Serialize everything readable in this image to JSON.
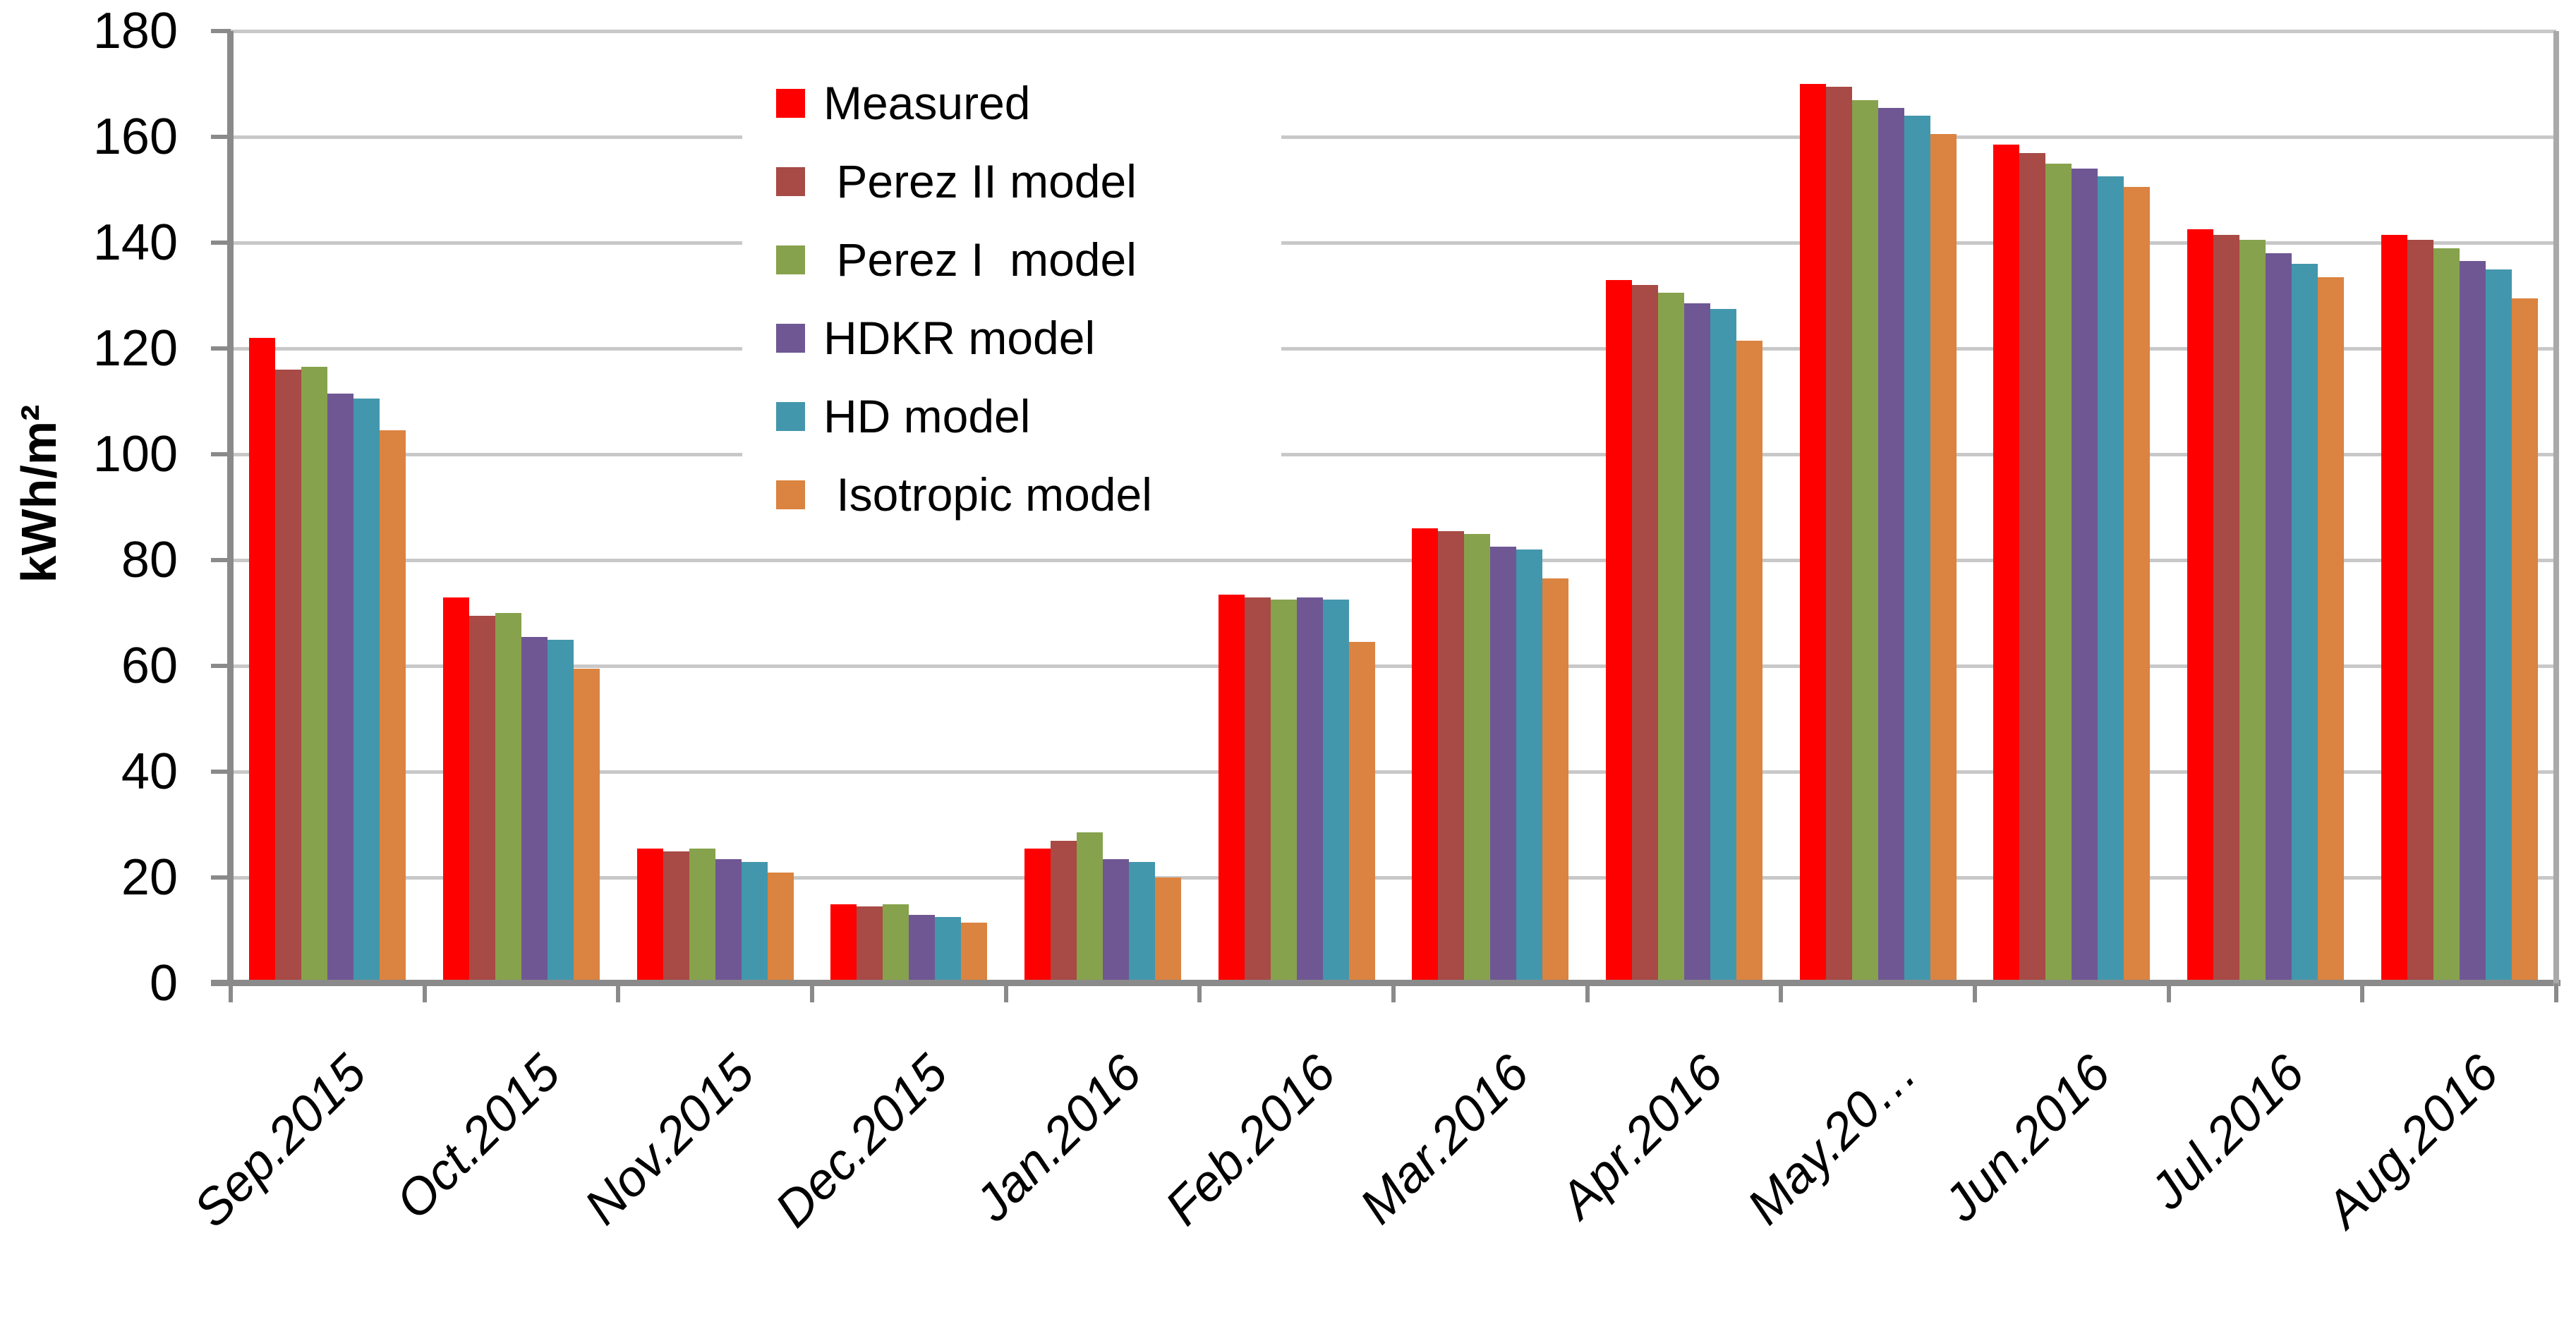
{
  "chart_data": {
    "type": "bar",
    "title": "",
    "xlabel": "",
    "ylabel": "kWh/m²",
    "ylim": [
      0,
      180
    ],
    "ytick_step": 20,
    "ytick_labels": [
      "0",
      "20",
      "40",
      "60",
      "80",
      "100",
      "120",
      "140",
      "160",
      "180"
    ],
    "grid": "horizontal",
    "legend_position": "inside-top-left",
    "categories": [
      "Sep.2015",
      "Oct.2015",
      "Nov.2015",
      "Dec.2015",
      "Jan.2016",
      "Feb.2016",
      "Mar.2016",
      "Apr.2016",
      "May.20…",
      "Jun.2016",
      "Jul.2016",
      "Aug.2016"
    ],
    "series": [
      {
        "key": "measured",
        "name": "Measured",
        "label": "Measured",
        "color": "#FF0000",
        "values": [
          122,
          73,
          25.5,
          15,
          25.5,
          73.5,
          86,
          133,
          170,
          158.5,
          142.5,
          141.5
        ]
      },
      {
        "key": "perez2",
        "name": "Perez II model",
        "label": " Perez II model",
        "color": "#A84A45",
        "values": [
          116,
          69.5,
          25,
          14.5,
          27,
          73,
          85.5,
          132,
          169.5,
          157,
          141.5,
          140.5
        ]
      },
      {
        "key": "perez1",
        "name": "Perez I model",
        "label": " Perez I  model",
        "color": "#87A24C",
        "values": [
          116.5,
          70,
          25.5,
          15,
          28.5,
          72.5,
          85,
          130.5,
          167,
          155,
          140.5,
          139
        ]
      },
      {
        "key": "hdkr",
        "name": "HDKR model",
        "label": "HDKR model",
        "color": "#6F5794",
        "values": [
          111.5,
          65.5,
          23.5,
          13,
          23.5,
          73,
          82.5,
          128.5,
          165.5,
          154,
          138,
          136.5
        ]
      },
      {
        "key": "hd",
        "name": "HD model",
        "label": "HD model",
        "color": "#4397AC",
        "values": [
          110.5,
          65,
          23,
          12.5,
          23,
          72.5,
          82,
          127.5,
          164,
          152.5,
          136,
          135
        ]
      },
      {
        "key": "isotropic",
        "name": "Isotropic model",
        "label": " Isotropic model",
        "color": "#DB8340",
        "values": [
          104.5,
          59.5,
          21,
          11.5,
          20,
          64.5,
          76.5,
          121.5,
          160.5,
          150.5,
          133.5,
          129.5
        ]
      }
    ]
  },
  "colors": {
    "background": "#FFFFFF",
    "gridline": "#C8C8C8",
    "axis": "#8A8A8A",
    "plot_right_border": "#A9A9A9",
    "text": "#000000"
  }
}
